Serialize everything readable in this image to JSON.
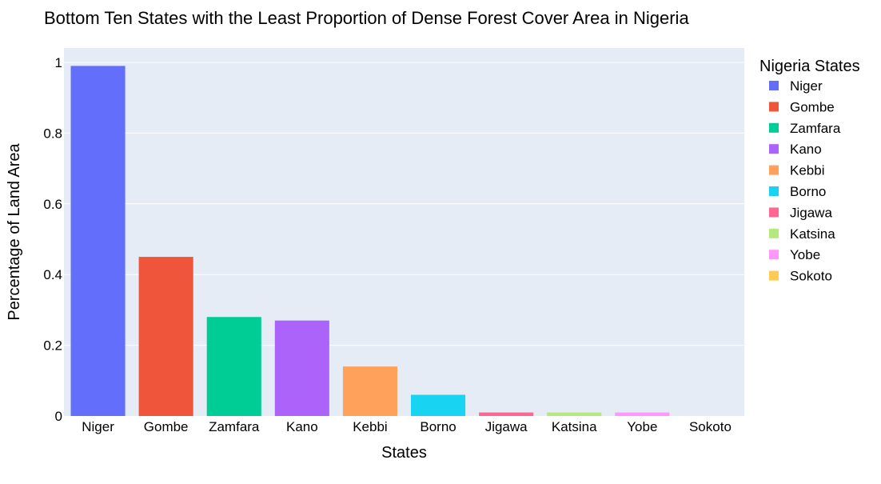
{
  "chart_data": {
    "type": "bar",
    "title": "Bottom Ten States with the Least Proportion of Dense Forest Cover Area in Nigeria",
    "xlabel": "States",
    "ylabel": "Percentage of Land Area",
    "legend_title": "Nigeria States",
    "legend_position": "right",
    "grid": true,
    "ylim": [
      0,
      1.0
    ],
    "yticks": [
      0,
      0.2,
      0.4,
      0.6,
      0.8,
      1
    ],
    "ytick_labels": [
      "0",
      "0.2",
      "0.4",
      "0.6",
      "0.8",
      "1"
    ],
    "categories": [
      "Niger",
      "Gombe",
      "Zamfara",
      "Kano",
      "Kebbi",
      "Borno",
      "Jigawa",
      "Katsina",
      "Yobe",
      "Sokoto"
    ],
    "values": [
      0.99,
      0.45,
      0.28,
      0.27,
      0.14,
      0.06,
      0.01,
      0.01,
      0.01,
      0.0
    ],
    "colors": [
      "#636efa",
      "#EF553B",
      "#00cc96",
      "#ab63fa",
      "#FFA15A",
      "#19d3f3",
      "#FF6692",
      "#B6E880",
      "#FF97FF",
      "#FECB52"
    ]
  }
}
